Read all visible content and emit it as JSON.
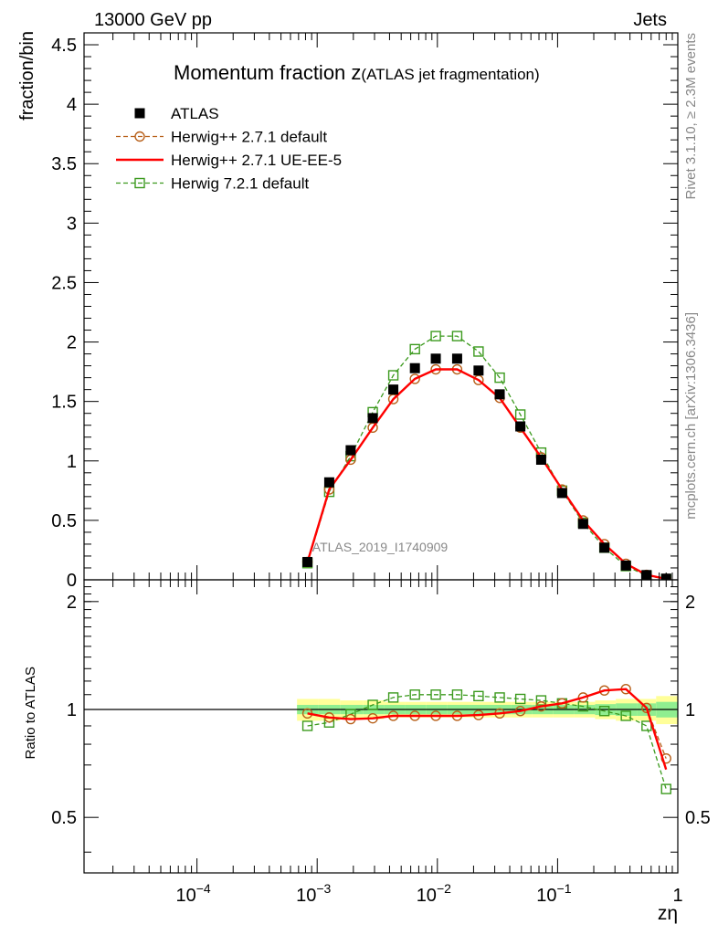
{
  "header": {
    "left": "13000 GeV pp",
    "right": "Jets"
  },
  "side_labels": {
    "rivet": "Rivet 3.1.10, ≥ 2.3M events",
    "mcplots": "mcplots.cern.ch [arXiv:1306.3436]"
  },
  "watermark": "ATLAS_2019_I1740909",
  "chart_data": [
    {
      "type": "line",
      "panel": "main",
      "title_main": "Momentum fraction z",
      "title_sub": "(ATLAS jet fragmentation)",
      "ylabel": "fraction/bin",
      "xscale": "log",
      "xlim": [
        1.15e-05,
        1
      ],
      "ylim": [
        0,
        4.6
      ],
      "yticks": [
        0,
        0.5,
        1,
        1.5,
        2,
        2.5,
        3,
        3.5,
        4,
        4.5
      ],
      "ytick_labels": [
        "0",
        "0.5",
        "1",
        "1.5",
        "2",
        "2.5",
        "3",
        "3.5",
        "4",
        "4.5"
      ],
      "legend_position": "top-left",
      "x": [
        0.00083,
        0.00126,
        0.0019,
        0.0029,
        0.0043,
        0.0065,
        0.0097,
        0.0146,
        0.022,
        0.033,
        0.049,
        0.073,
        0.109,
        0.163,
        0.245,
        0.37,
        0.55,
        0.8
      ],
      "series": [
        {
          "name": "ATLAS",
          "color": "#000000",
          "style": "markers-square",
          "values": [
            0.15,
            0.82,
            1.09,
            1.36,
            1.6,
            1.78,
            1.86,
            1.86,
            1.76,
            1.56,
            1.29,
            1.01,
            0.73,
            0.47,
            0.27,
            0.12,
            0.04,
            0.01
          ]
        },
        {
          "name": "Herwig++ 2.7.1 default",
          "color": "#b8601a",
          "style": "dashed-open-circle",
          "values": [
            0.15,
            0.76,
            1.01,
            1.28,
            1.52,
            1.69,
            1.77,
            1.77,
            1.68,
            1.53,
            1.28,
            1.03,
            0.76,
            0.5,
            0.3,
            0.135,
            0.042,
            0.008
          ]
        },
        {
          "name": "Herwig++ 2.7.1 UE-EE-5",
          "color": "#ff0000",
          "style": "solid",
          "values": [
            0.15,
            0.76,
            1.01,
            1.28,
            1.52,
            1.69,
            1.77,
            1.77,
            1.68,
            1.53,
            1.28,
            1.03,
            0.76,
            0.5,
            0.3,
            0.135,
            0.042,
            0.008
          ]
        },
        {
          "name": "Herwig 7.2.1 default",
          "color": "#3c9a1e",
          "style": "dashed-open-square",
          "values": [
            0.14,
            0.74,
            1.04,
            1.41,
            1.72,
            1.94,
            2.05,
            2.05,
            1.92,
            1.7,
            1.39,
            1.07,
            0.75,
            0.48,
            0.27,
            0.115,
            0.036,
            0.006
          ]
        }
      ]
    },
    {
      "type": "line",
      "panel": "ratio",
      "ylabel": "Ratio to ATLAS",
      "xlabel": "zη",
      "xscale": "log",
      "xlim": [
        1.15e-05,
        1
      ],
      "ylim": [
        0.35,
        2.3
      ],
      "yticks": [
        0.5,
        1,
        2
      ],
      "ytick_labels": [
        "0.5",
        "1",
        "2"
      ],
      "xticks": [
        0.0001,
        0.001,
        0.01,
        0.1,
        1
      ],
      "xtick_labels": [
        {
          "base": "10",
          "exp": "−4"
        },
        {
          "base": "10",
          "exp": "−3"
        },
        {
          "base": "10",
          "exp": "−2"
        },
        {
          "base": "10",
          "exp": "−1"
        },
        {
          "base": "1",
          "exp": ""
        }
      ],
      "x": [
        0.00083,
        0.00126,
        0.0019,
        0.0029,
        0.0043,
        0.0065,
        0.0097,
        0.0146,
        0.022,
        0.033,
        0.049,
        0.073,
        0.109,
        0.163,
        0.245,
        0.37,
        0.55,
        0.8
      ],
      "band_edges": [
        0.00068,
        0.00103,
        0.00155,
        0.0024,
        0.0036,
        0.0054,
        0.0081,
        0.0121,
        0.0182,
        0.0272,
        0.0408,
        0.061,
        0.0915,
        0.137,
        0.205,
        0.305,
        0.46,
        0.66,
        1.0
      ],
      "band_stat": [
        0.03,
        0.03,
        0.03,
        0.03,
        0.03,
        0.03,
        0.03,
        0.03,
        0.03,
        0.03,
        0.03,
        0.03,
        0.03,
        0.03,
        0.035,
        0.04,
        0.04,
        0.05
      ],
      "band_total": [
        0.07,
        0.07,
        0.06,
        0.06,
        0.05,
        0.05,
        0.05,
        0.05,
        0.05,
        0.05,
        0.05,
        0.05,
        0.05,
        0.05,
        0.06,
        0.07,
        0.07,
        0.09
      ],
      "band_colors": {
        "total": "#ffff99",
        "stat": "#90ee90"
      },
      "series": [
        {
          "name": "Herwig++ 2.7.1 default",
          "color": "#b8601a",
          "style": "dashed-open-circle",
          "values": [
            0.975,
            0.95,
            0.94,
            0.945,
            0.96,
            0.96,
            0.96,
            0.96,
            0.965,
            0.975,
            0.99,
            1.02,
            1.04,
            1.08,
            1.13,
            1.14,
            1.01,
            0.73
          ]
        },
        {
          "name": "Herwig++ 2.7.1 UE-EE-5",
          "color": "#ff0000",
          "style": "solid",
          "values": [
            0.975,
            0.95,
            0.94,
            0.945,
            0.96,
            0.96,
            0.96,
            0.96,
            0.965,
            0.975,
            0.99,
            1.02,
            1.04,
            1.08,
            1.13,
            1.14,
            1.01,
            0.68
          ]
        },
        {
          "name": "Herwig 7.2.1 default",
          "color": "#3c9a1e",
          "style": "dashed-open-square",
          "values": [
            0.9,
            0.92,
            0.97,
            1.03,
            1.08,
            1.1,
            1.1,
            1.1,
            1.09,
            1.08,
            1.07,
            1.06,
            1.04,
            1.02,
            0.99,
            0.96,
            0.9,
            0.6
          ]
        }
      ]
    }
  ]
}
